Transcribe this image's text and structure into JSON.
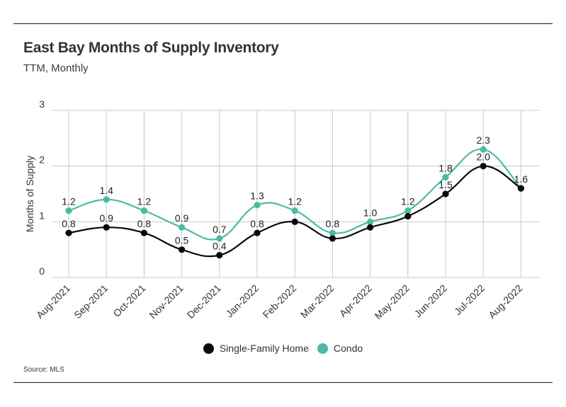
{
  "header": {
    "title": "East Bay Months of Supply Inventory",
    "subtitle": "TTM, Monthly"
  },
  "footer": {
    "source": "Source:  MLS"
  },
  "colors": {
    "single_family": "#0a0a0a",
    "condo": "#4dbaa4",
    "grid": "#c8c8c8"
  },
  "chart_data": {
    "type": "line",
    "title": "East Bay Months of Supply Inventory",
    "subtitle": "TTM, Monthly",
    "xlabel": "",
    "ylabel": "Months of Supply",
    "ylim": [
      0,
      3
    ],
    "yticks": [
      "0",
      "1",
      "2",
      "3"
    ],
    "grid": true,
    "legend_position": "bottom",
    "categories": [
      "Aug-2021",
      "Sep-2021",
      "Oct-2021",
      "Nov-2021",
      "Dec-2021",
      "Jan-2022",
      "Feb-2022",
      "Mar-2022",
      "Apr-2022",
      "May-2022",
      "Jun-2022",
      "Jul-2022",
      "Aug-2022"
    ],
    "series": [
      {
        "name": "Single-Family Home",
        "color": "#0a0a0a",
        "values": [
          0.8,
          0.9,
          0.8,
          0.5,
          0.4,
          0.8,
          1.0,
          0.7,
          0.9,
          1.1,
          1.5,
          2.0,
          1.6
        ],
        "labels": [
          "0.8",
          "0.9",
          "0.8",
          "0.5",
          "0.4",
          "0.8",
          "",
          "",
          "",
          "",
          "1.5",
          "2.0",
          ""
        ]
      },
      {
        "name": "Condo",
        "color": "#4dbaa4",
        "values": [
          1.2,
          1.4,
          1.2,
          0.9,
          0.7,
          1.3,
          1.2,
          0.8,
          1.0,
          1.2,
          1.8,
          2.3,
          1.6
        ],
        "labels": [
          "1.2",
          "1.4",
          "1.2",
          "0.9",
          "0.7",
          "1.3",
          "1.2",
          "0.8",
          "1.0",
          "1.2",
          "1.8",
          "2.3",
          "1.6"
        ]
      }
    ]
  }
}
